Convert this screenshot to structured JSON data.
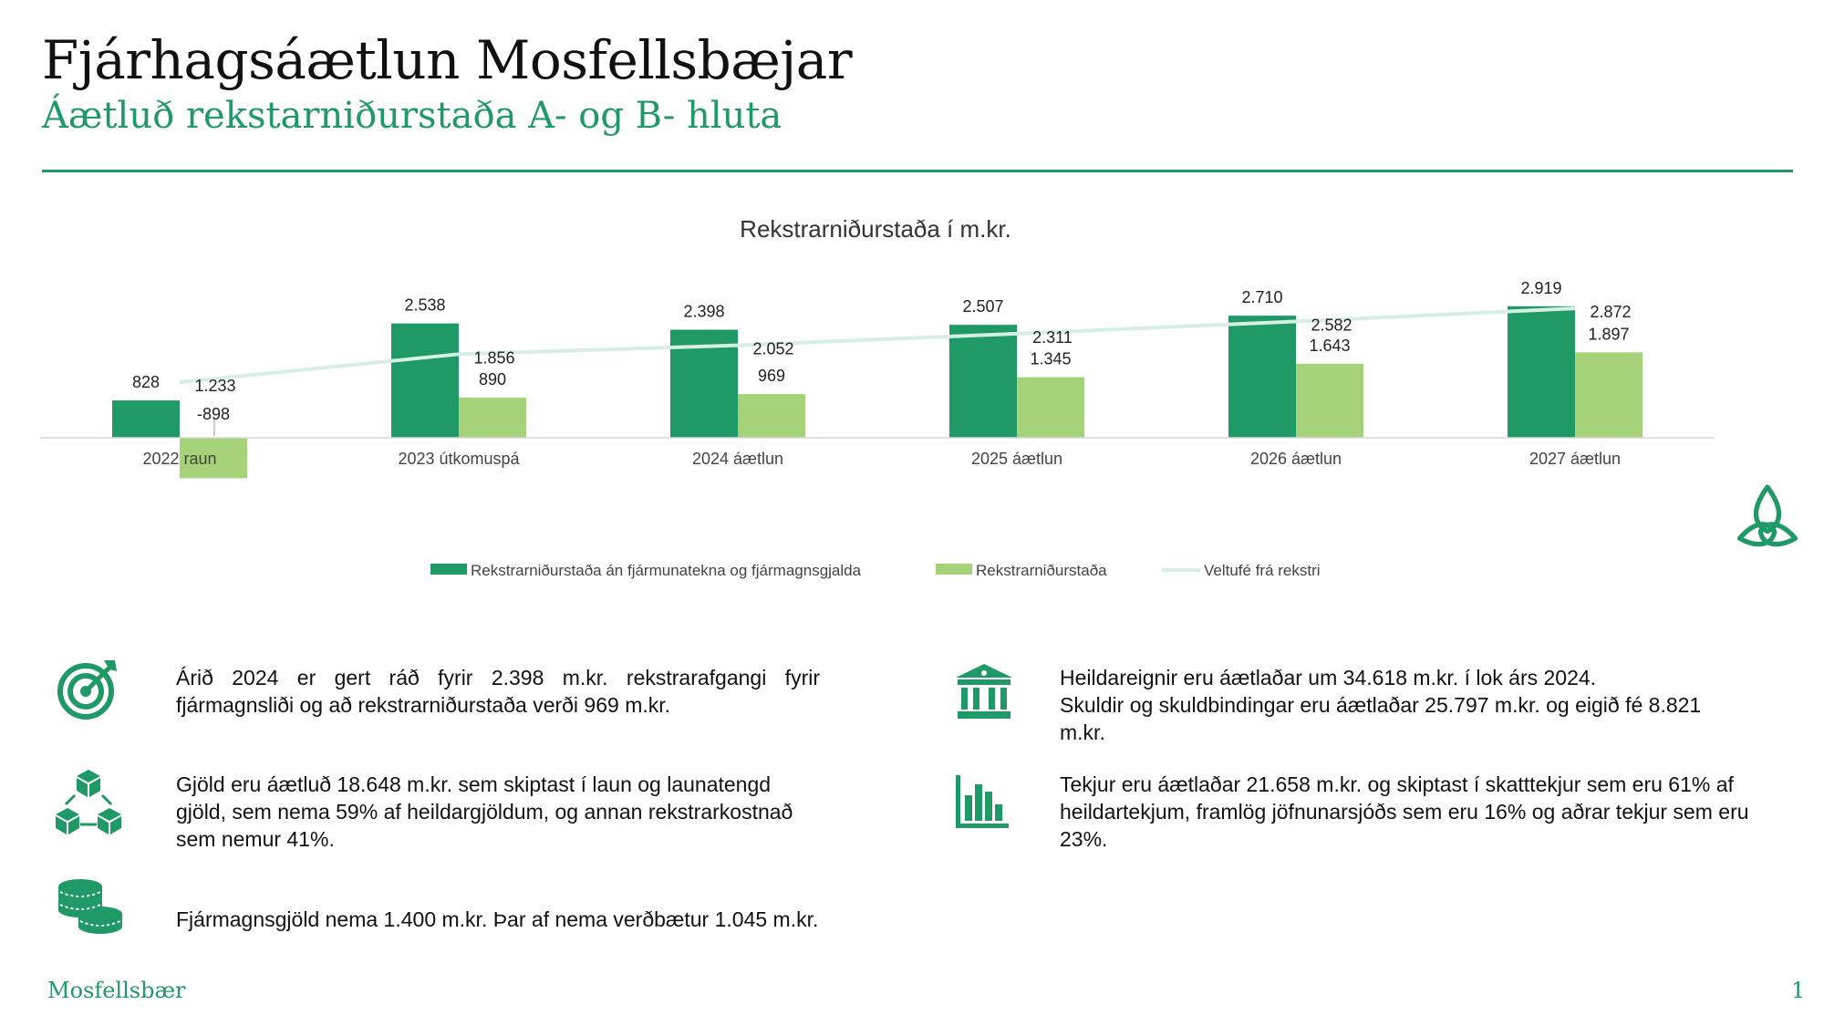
{
  "header": {
    "title": "Fjárhagsáætlun Mosfellsbæjar",
    "subtitle": "Áætluð rekstarniðurstaða A- og B- hluta"
  },
  "chart_data": {
    "type": "bar",
    "title": "Rekstrarniðurstaða í m.kr.",
    "categories": [
      "2022 raun",
      "2023 útkomuspá",
      "2024 áætlun",
      "2025 áætlun",
      "2026 áætlun",
      "2027 áætlun"
    ],
    "series": [
      {
        "name": "Rekstrarniðurstaða án fjármunatekna og fjármagnsgjalda",
        "type": "bar",
        "color": "#1f9a66",
        "values": [
          828,
          2538,
          2398,
          2507,
          2710,
          2919
        ],
        "labels": [
          "828",
          "2.538",
          "2.398",
          "2.507",
          "2.710",
          "2.919"
        ]
      },
      {
        "name": "Rekstrarniðurstaða",
        "type": "bar",
        "color": "#a6d279",
        "values": [
          -898,
          890,
          969,
          1345,
          1643,
          1897
        ],
        "labels": [
          "-898",
          "890",
          "969",
          "1.345",
          "1.643",
          "1.897"
        ]
      },
      {
        "name": "Veltufé frá rekstri",
        "type": "line",
        "color": "#d6eee3",
        "values": [
          1233,
          1856,
          2052,
          2311,
          2582,
          2872
        ],
        "labels": [
          "1.233",
          "1.856",
          "2.052",
          "2.311",
          "2.582",
          "2.872"
        ]
      }
    ],
    "legend_position": "bottom",
    "grid": false
  },
  "info": {
    "target": "Árið 2024 er gert ráð fyrir 2.398 m.kr. rekstrarafgangi fyrir fjármagnsliði og að rekstrarniðurstaða verði 969 m.kr.",
    "costs": "Gjöld eru áætluð 18.648 m.kr. sem skiptast í laun og launatengd gjöld, sem nema 59% af heildargjöldum, og annan rekstrarkostnað sem nemur 41%.",
    "finance": "Fjármagnsgjöld nema 1.400 m.kr. Þar af nema verðbætur 1.045 m.kr.",
    "assets_line1": "Heildareignir eru áætlaðar um 34.618 m.kr. í lok árs 2024.",
    "assets_line2": "Skuldir og skuldbindingar eru áætlaðar 25.797 m.kr. og eigið fé 8.821 m.kr.",
    "revenue": "Tekjur eru áætlaðar 21.658 m.kr. og skiptast í skatttekjur sem eru 61% af heildartekjum, framlög jöfnunarsjóðs sem eru 16% og aðrar tekjur sem eru 23%."
  },
  "icons": {
    "target": "target-icon",
    "costs": "cubes-icon",
    "finance": "coins-icon",
    "assets": "bank-icon",
    "revenue": "bar-chart-icon",
    "logo": "mosfellsbaer-logo-icon"
  },
  "footer": {
    "name": "Mosfellsbær",
    "page": "1"
  }
}
